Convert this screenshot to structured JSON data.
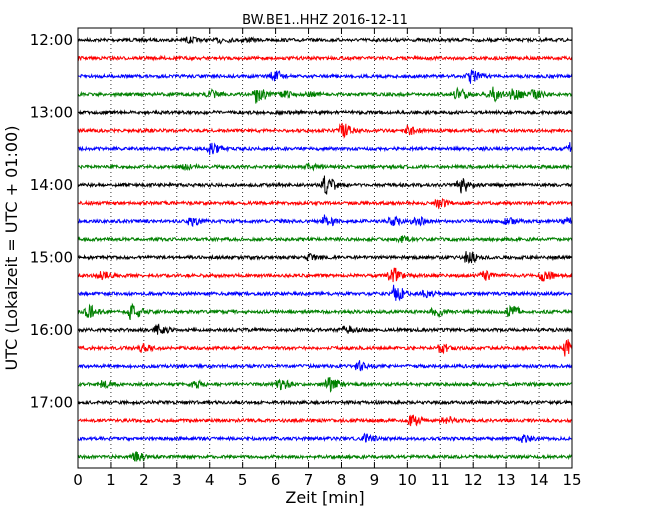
{
  "chart_data": {
    "type": "line",
    "title": "BW.BE1..HHZ 2016-12-11",
    "xlabel": "Zeit  [min]",
    "ylabel": "UTC (Lokalzeit = UTC + 01:00)",
    "xlim": [
      0,
      15
    ],
    "x_ticks": [
      0,
      1,
      2,
      3,
      4,
      5,
      6,
      7,
      8,
      9,
      10,
      11,
      12,
      13,
      14,
      15
    ],
    "y_tick_labels": [
      "12:00",
      "13:00",
      "14:00",
      "15:00",
      "16:00",
      "17:00"
    ],
    "row_start": "12:00",
    "row_minutes": 15,
    "grid": {
      "x": true,
      "y": false
    },
    "colors": [
      "#000000",
      "#ff0000",
      "#0000ff",
      "#008000"
    ],
    "series": [
      {
        "row": "12:00",
        "color": "#000000",
        "events": [
          [
            3.3,
            0.25
          ],
          [
            4.3,
            0.25
          ],
          [
            5.0,
            0.15
          ]
        ]
      },
      {
        "row": "12:15",
        "color": "#ff0000",
        "events": []
      },
      {
        "row": "12:30",
        "color": "#0000ff",
        "events": [
          [
            5.9,
            0.6
          ],
          [
            11.9,
            0.7
          ]
        ]
      },
      {
        "row": "12:45",
        "color": "#008000",
        "events": [
          [
            4.0,
            0.4
          ],
          [
            5.4,
            0.9
          ],
          [
            6.2,
            0.3
          ],
          [
            7.0,
            0.2
          ],
          [
            11.5,
            0.6
          ],
          [
            12.5,
            0.8
          ],
          [
            13.2,
            0.7
          ],
          [
            13.8,
            0.4
          ]
        ]
      },
      {
        "row": "13:00",
        "color": "#000000",
        "events": []
      },
      {
        "row": "13:15",
        "color": "#ff0000",
        "events": [
          [
            8.0,
            0.8
          ],
          [
            10.0,
            0.5
          ]
        ]
      },
      {
        "row": "13:30",
        "color": "#0000ff",
        "events": [
          [
            4.0,
            0.6
          ],
          [
            14.9,
            0.8
          ]
        ]
      },
      {
        "row": "13:45",
        "color": "#008000",
        "events": [
          [
            3.2,
            0.35
          ],
          [
            7.0,
            0.3
          ]
        ]
      },
      {
        "row": "14:00",
        "color": "#000000",
        "events": [
          [
            7.5,
            0.9
          ],
          [
            11.6,
            0.9
          ]
        ]
      },
      {
        "row": "14:15",
        "color": "#ff0000",
        "events": [
          [
            10.9,
            0.4
          ]
        ]
      },
      {
        "row": "14:30",
        "color": "#0000ff",
        "events": [
          [
            3.4,
            0.4
          ],
          [
            7.5,
            0.6
          ],
          [
            9.5,
            0.4
          ],
          [
            10.2,
            0.5
          ],
          [
            13.0,
            0.3
          ],
          [
            14.8,
            0.3
          ]
        ]
      },
      {
        "row": "14:45",
        "color": "#008000",
        "events": [
          [
            9.8,
            0.3
          ]
        ]
      },
      {
        "row": "15:00",
        "color": "#000000",
        "events": [
          [
            7.0,
            0.3
          ],
          [
            11.8,
            0.7
          ]
        ]
      },
      {
        "row": "15:15",
        "color": "#ff0000",
        "events": [
          [
            0.7,
            0.4
          ],
          [
            9.5,
            0.9
          ],
          [
            12.3,
            0.5
          ],
          [
            14.1,
            0.6
          ]
        ]
      },
      {
        "row": "15:30",
        "color": "#0000ff",
        "events": [
          [
            9.6,
            0.9
          ],
          [
            10.5,
            0.3
          ]
        ]
      },
      {
        "row": "15:45",
        "color": "#008000",
        "events": [
          [
            0.3,
            0.6
          ],
          [
            1.6,
            0.8
          ],
          [
            10.8,
            0.5
          ],
          [
            13.1,
            0.7
          ]
        ]
      },
      {
        "row": "16:00",
        "color": "#000000",
        "events": [
          [
            2.4,
            0.5
          ],
          [
            8.1,
            0.4
          ]
        ]
      },
      {
        "row": "16:15",
        "color": "#ff0000",
        "events": [
          [
            1.9,
            0.35
          ],
          [
            11.0,
            0.4
          ],
          [
            14.8,
            0.9
          ]
        ]
      },
      {
        "row": "16:30",
        "color": "#0000ff",
        "events": [
          [
            8.5,
            0.5
          ]
        ]
      },
      {
        "row": "16:45",
        "color": "#008000",
        "events": [
          [
            0.7,
            0.3
          ],
          [
            3.5,
            0.4
          ],
          [
            6.1,
            0.5
          ],
          [
            7.6,
            0.7
          ]
        ]
      },
      {
        "row": "17:00",
        "color": "#000000",
        "events": []
      },
      {
        "row": "17:15",
        "color": "#ff0000",
        "events": [
          [
            10.1,
            0.5
          ],
          [
            11.1,
            0.5
          ]
        ]
      },
      {
        "row": "17:30",
        "color": "#0000ff",
        "events": [
          [
            8.7,
            0.4
          ],
          [
            13.5,
            0.3
          ]
        ]
      },
      {
        "row": "17:45",
        "color": "#008000",
        "events": [
          [
            1.7,
            0.5
          ]
        ]
      }
    ]
  }
}
